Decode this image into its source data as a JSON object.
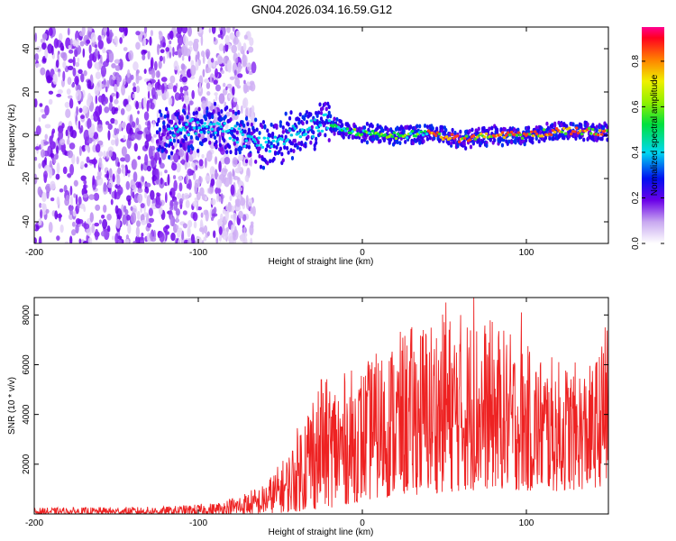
{
  "title": "GN04.2026.034.16.59.G12",
  "chart_data": [
    {
      "type": "heatmap",
      "name": "spectrogram",
      "xlabel": "Height of straight line (km)",
      "ylabel": "Frequency (Hz)",
      "xlim": [
        -200,
        150
      ],
      "ylim": [
        -50,
        50
      ],
      "xticks": [
        -200,
        -100,
        0,
        100
      ],
      "yticks": [
        -40,
        -20,
        0,
        20,
        40
      ],
      "colorbar": {
        "label": "Normalized spectral amplitude",
        "range": [
          0,
          0.95
        ],
        "ticks": [
          0.0,
          0.2,
          0.4,
          0.6,
          0.8
        ],
        "tick_labels": [
          "0.0",
          "0.2",
          "0.4",
          "0.6",
          "0.8"
        ]
      },
      "signal_center_hz": [
        {
          "x": -115,
          "y": 3
        },
        {
          "x": -90,
          "y": 4
        },
        {
          "x": -80,
          "y": 2
        },
        {
          "x": -70,
          "y": -2
        },
        {
          "x": -60,
          "y": -4
        },
        {
          "x": -50,
          "y": -3
        },
        {
          "x": -40,
          "y": 2
        },
        {
          "x": -30,
          "y": 3
        },
        {
          "x": -22,
          "y": 6
        },
        {
          "x": -10,
          "y": 2
        },
        {
          "x": 0,
          "y": 1
        },
        {
          "x": 20,
          "y": 0
        },
        {
          "x": 40,
          "y": 1
        },
        {
          "x": 60,
          "y": -2
        },
        {
          "x": 80,
          "y": 0
        },
        {
          "x": 100,
          "y": 0
        },
        {
          "x": 120,
          "y": 2
        },
        {
          "x": 140,
          "y": 2
        },
        {
          "x": 150,
          "y": 1
        }
      ],
      "noise_region_x": [
        -200,
        -78
      ]
    },
    {
      "type": "line",
      "name": "snr",
      "xlabel": "Height of straight line (km)",
      "ylabel": "SNR (10 * v/v)",
      "xlim": [
        -200,
        150
      ],
      "ylim": [
        0,
        8700
      ],
      "xticks": [
        -200,
        -100,
        0,
        100
      ],
      "yticks": [
        2000,
        4000,
        6000,
        8000
      ],
      "color": "#ee2222",
      "envelope": [
        {
          "x": -200,
          "lo": 0,
          "hi": 250
        },
        {
          "x": -120,
          "lo": 0,
          "hi": 300
        },
        {
          "x": -90,
          "lo": 0,
          "hi": 450
        },
        {
          "x": -75,
          "lo": 0,
          "hi": 800
        },
        {
          "x": -60,
          "lo": 20,
          "hi": 1200
        },
        {
          "x": -45,
          "lo": 60,
          "hi": 2500
        },
        {
          "x": -30,
          "lo": 150,
          "hi": 5300
        },
        {
          "x": -15,
          "lo": 300,
          "hi": 5600
        },
        {
          "x": 0,
          "lo": 500,
          "hi": 6000
        },
        {
          "x": 20,
          "lo": 700,
          "hi": 7200
        },
        {
          "x": 40,
          "lo": 800,
          "hi": 8000
        },
        {
          "x": 60,
          "lo": 900,
          "hi": 8200
        },
        {
          "x": 80,
          "lo": 1000,
          "hi": 7800
        },
        {
          "x": 100,
          "lo": 900,
          "hi": 6800
        },
        {
          "x": 120,
          "lo": 900,
          "hi": 6200
        },
        {
          "x": 140,
          "lo": 1000,
          "hi": 6000
        },
        {
          "x": 150,
          "lo": 1200,
          "hi": 7600
        }
      ],
      "notable_peaks": [
        {
          "x": 68,
          "y": 8700
        },
        {
          "x": 51,
          "y": 8500
        },
        {
          "x": 97,
          "y": 8100
        },
        {
          "x": 148,
          "y": 7500
        },
        {
          "x": 6,
          "y": 6100
        },
        {
          "x": -25,
          "y": 5400
        }
      ],
      "n_points": 1400
    }
  ]
}
